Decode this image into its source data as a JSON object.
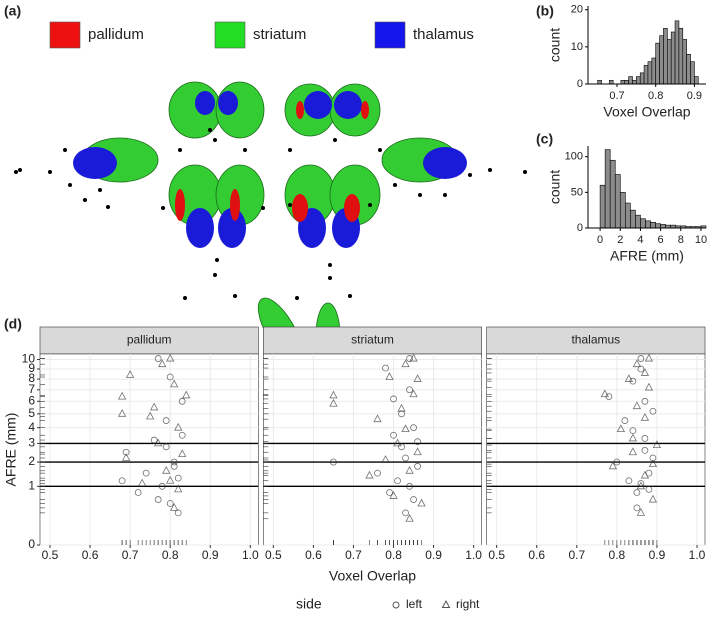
{
  "chart_data": [
    {
      "type": "image",
      "label": "(a)",
      "series": [
        {
          "name": "pallidum",
          "color": "#ee1111"
        },
        {
          "name": "striatum",
          "color": "#22dd22"
        },
        {
          "name": "thalamus",
          "color": "#1515ee"
        }
      ]
    },
    {
      "type": "histogram",
      "label": "(b)",
      "xlabel": "Voxel Overlap",
      "ylabel": "count",
      "color": "#8c8c8c",
      "bins": [
        0.65,
        0.66,
        0.67,
        0.68,
        0.69,
        0.7,
        0.71,
        0.72,
        0.73,
        0.74,
        0.75,
        0.76,
        0.77,
        0.78,
        0.79,
        0.8,
        0.81,
        0.82,
        0.83,
        0.84,
        0.85,
        0.86,
        0.87,
        0.88,
        0.89,
        0.9,
        0.91
      ],
      "counts": [
        1,
        0,
        0,
        1,
        0,
        0,
        1,
        1,
        2,
        1,
        2,
        3,
        5,
        6,
        7,
        11,
        13,
        15,
        12,
        14,
        17,
        15,
        12,
        8,
        6,
        2
      ],
      "xlim": [
        0.625,
        0.93
      ],
      "ylim": [
        0,
        21
      ],
      "xticks": [
        0.7,
        0.8,
        0.9
      ],
      "yticks": [
        0,
        10,
        20
      ]
    },
    {
      "type": "histogram",
      "label": "(c)",
      "xlabel": "AFRE (mm)",
      "ylabel": "count",
      "color": "#8c8c8c",
      "bins": [
        0,
        0.5,
        1,
        1.5,
        2,
        2.5,
        3,
        3.5,
        4,
        4.5,
        5,
        5.5,
        6,
        6.5,
        7,
        7.5,
        8,
        8.5,
        9,
        9.5,
        10,
        10.5
      ],
      "counts": [
        60,
        110,
        95,
        75,
        50,
        35,
        25,
        18,
        13,
        10,
        8,
        6,
        5,
        4,
        4,
        3,
        3,
        2,
        2,
        2,
        3
      ],
      "xlim": [
        -1.2,
        10.5
      ],
      "ylim": [
        0,
        115
      ],
      "xticks": [
        0,
        2,
        4,
        6,
        8,
        10
      ],
      "yticks": [
        0,
        50,
        100
      ]
    },
    {
      "type": "scatter",
      "label": "(d)",
      "xlabel": "Voxel Overlap",
      "ylabel": "AFRE (mm)",
      "yscale": "sqrt",
      "grid": true,
      "xlim": [
        0.475,
        1.02
      ],
      "ylim": [
        0,
        10.6
      ],
      "xticks": [
        0.5,
        0.6,
        0.7,
        0.8,
        0.9,
        {
          "value": 1,
          "label": "1.0"
        }
      ],
      "yticks": [
        0,
        1,
        2,
        3,
        4,
        5,
        6,
        7,
        8,
        9,
        10
      ],
      "hlines": [
        1,
        2,
        3
      ],
      "legend_title": "side",
      "series": [
        {
          "name": "left",
          "marker": "circle"
        },
        {
          "name": "right",
          "marker": "triangle"
        }
      ],
      "facets": [
        {
          "name": "pallidum",
          "points": [
            {
              "x": [
                0.68,
                0.69,
                0.72,
                0.74,
                0.76,
                0.77,
                0.78,
                0.79,
                0.8,
                0.81,
                0.82,
                0.83,
                0.8,
                0.82,
                0.77,
                0.81,
                0.83,
                0.79
              ],
              "y": [
                1.2,
                2.5,
                0.8,
                1.5,
                3.2,
                10.1,
                1.0,
                4.5,
                0.5,
                2.0,
                1.3,
                6.0,
                8.2,
                0.3,
                0.6,
                1.8,
                3.5,
                2.8
              ]
            },
            {
              "x": [
                0.68,
                0.68,
                0.69,
                0.7,
                0.73,
                0.75,
                0.76,
                0.77,
                0.78,
                0.79,
                0.8,
                0.81,
                0.82,
                0.83,
                0.84,
                0.81,
                0.8,
                0.82
              ],
              "y": [
                5.0,
                6.4,
                2.2,
                8.4,
                1.1,
                4.8,
                5.5,
                3.0,
                9.5,
                1.6,
                10.1,
                7.5,
                0.9,
                2.4,
                6.5,
                0.4,
                1.2,
                4.0
              ]
            }
          ]
        },
        {
          "name": "striatum",
          "points": [
            {
              "x": [
                0.65,
                0.76,
                0.78,
                0.79,
                0.8,
                0.81,
                0.82,
                0.83,
                0.84,
                0.85,
                0.86,
                0.84,
                0.85,
                0.83,
                0.82,
                0.86,
                0.8,
                0.84
              ],
              "y": [
                2.0,
                1.5,
                9.1,
                0.8,
                3.5,
                1.2,
                5.0,
                2.2,
                10.1,
                0.6,
                1.8,
                7.0,
                4.0,
                0.3,
                2.8,
                3.1,
                6.2,
                1.0
              ]
            },
            {
              "x": [
                0.65,
                0.65,
                0.74,
                0.76,
                0.78,
                0.79,
                0.8,
                0.81,
                0.82,
                0.83,
                0.84,
                0.85,
                0.86,
                0.87,
                0.85,
                0.84,
                0.83,
                0.86
              ],
              "y": [
                5.8,
                6.5,
                1.4,
                4.6,
                2.1,
                8.2,
                0.7,
                3.0,
                5.4,
                9.5,
                1.6,
                10.1,
                2.5,
                0.5,
                6.6,
                0.2,
                3.9,
                8.0
              ]
            }
          ]
        },
        {
          "name": "thalamus",
          "points": [
            {
              "x": [
                0.78,
                0.8,
                0.82,
                0.83,
                0.84,
                0.85,
                0.86,
                0.87,
                0.88,
                0.89,
                0.85,
                0.87,
                0.86,
                0.88,
                0.84,
                0.87,
                0.89,
                0.86
              ],
              "y": [
                6.4,
                2.0,
                4.5,
                1.2,
                7.8,
                0.8,
                10.1,
                3.3,
                1.5,
                5.2,
                0.4,
                2.6,
                9.0,
                0.9,
                3.8,
                6.0,
                2.2,
                1.1
              ]
            },
            {
              "x": [
                0.77,
                0.79,
                0.81,
                0.83,
                0.84,
                0.85,
                0.86,
                0.87,
                0.88,
                0.89,
                0.9,
                0.85,
                0.87,
                0.88,
                0.86,
                0.84,
                0.89,
                0.87
              ],
              "y": [
                6.6,
                1.8,
                3.9,
                8.0,
                2.5,
                9.5,
                1.0,
                4.7,
                10.1,
                0.6,
                2.9,
                5.6,
                1.4,
                7.2,
                0.3,
                3.3,
                1.9,
                8.6
              ]
            }
          ]
        }
      ]
    }
  ]
}
